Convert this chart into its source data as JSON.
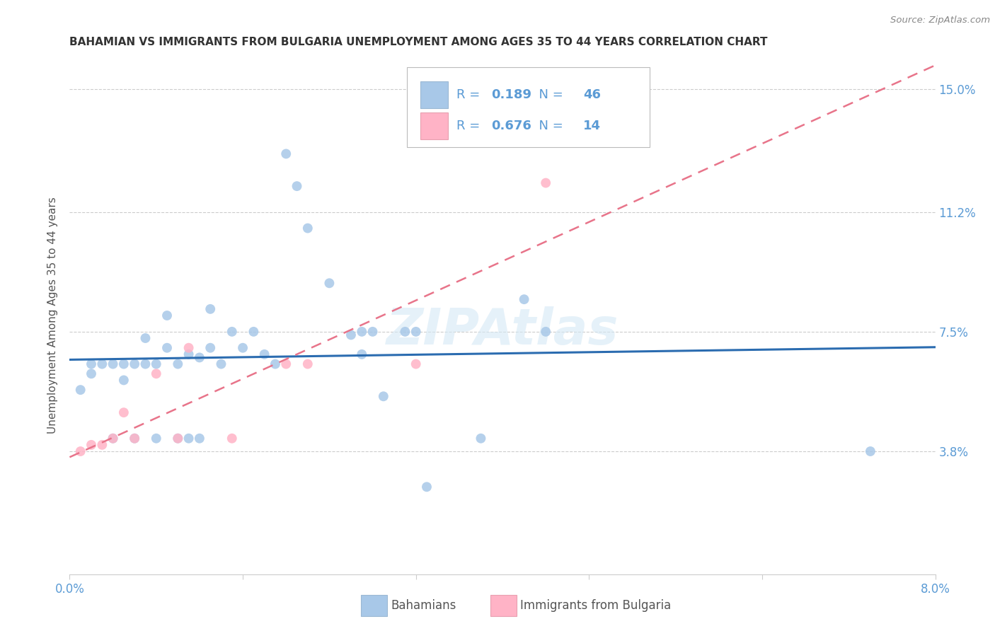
{
  "title": "BAHAMIAN VS IMMIGRANTS FROM BULGARIA UNEMPLOYMENT AMONG AGES 35 TO 44 YEARS CORRELATION CHART",
  "source": "Source: ZipAtlas.com",
  "ylabel": "Unemployment Among Ages 35 to 44 years",
  "x_min": 0.0,
  "x_max": 0.08,
  "y_min": 0.0,
  "y_max": 0.16,
  "y_ticks": [
    0.038,
    0.075,
    0.112,
    0.15
  ],
  "y_tick_labels": [
    "3.8%",
    "7.5%",
    "11.2%",
    "15.0%"
  ],
  "x_ticks": [
    0.0,
    0.016,
    0.032,
    0.048,
    0.064,
    0.08
  ],
  "bahamians_R": "0.189",
  "bahamians_N": "46",
  "bulgaria_R": "0.676",
  "bulgaria_N": "14",
  "blue_scatter_color": "#A8C8E8",
  "pink_scatter_color": "#FFB3C6",
  "blue_line_color": "#2B6CB0",
  "pink_line_color": "#E8748A",
  "axis_color": "#5B9BD5",
  "title_color": "#333333",
  "source_color": "#888888",
  "grid_color": "#CCCCCC",
  "watermark_color": "#D5E8F5",
  "legend_label_blue": "Bahamians",
  "legend_label_pink": "Immigrants from Bulgaria",
  "bahamians_x": [
    0.001,
    0.002,
    0.002,
    0.003,
    0.004,
    0.004,
    0.005,
    0.005,
    0.006,
    0.006,
    0.007,
    0.007,
    0.008,
    0.008,
    0.009,
    0.009,
    0.01,
    0.01,
    0.011,
    0.011,
    0.012,
    0.012,
    0.013,
    0.013,
    0.014,
    0.015,
    0.016,
    0.017,
    0.018,
    0.019,
    0.02,
    0.021,
    0.022,
    0.024,
    0.026,
    0.027,
    0.028,
    0.029,
    0.031,
    0.032,
    0.033,
    0.038,
    0.042,
    0.044,
    0.074,
    0.027
  ],
  "bahamians_y": [
    0.057,
    0.062,
    0.065,
    0.065,
    0.065,
    0.042,
    0.06,
    0.065,
    0.042,
    0.065,
    0.065,
    0.073,
    0.042,
    0.065,
    0.07,
    0.08,
    0.042,
    0.065,
    0.042,
    0.068,
    0.042,
    0.067,
    0.07,
    0.082,
    0.065,
    0.075,
    0.07,
    0.075,
    0.068,
    0.065,
    0.13,
    0.12,
    0.107,
    0.09,
    0.074,
    0.075,
    0.075,
    0.055,
    0.075,
    0.075,
    0.027,
    0.042,
    0.085,
    0.075,
    0.038,
    0.068
  ],
  "bulgaria_x": [
    0.001,
    0.002,
    0.003,
    0.004,
    0.005,
    0.006,
    0.008,
    0.01,
    0.011,
    0.015,
    0.02,
    0.022,
    0.032,
    0.044
  ],
  "bulgaria_y": [
    0.038,
    0.04,
    0.04,
    0.042,
    0.05,
    0.042,
    0.062,
    0.042,
    0.07,
    0.042,
    0.065,
    0.065,
    0.065,
    0.121
  ]
}
